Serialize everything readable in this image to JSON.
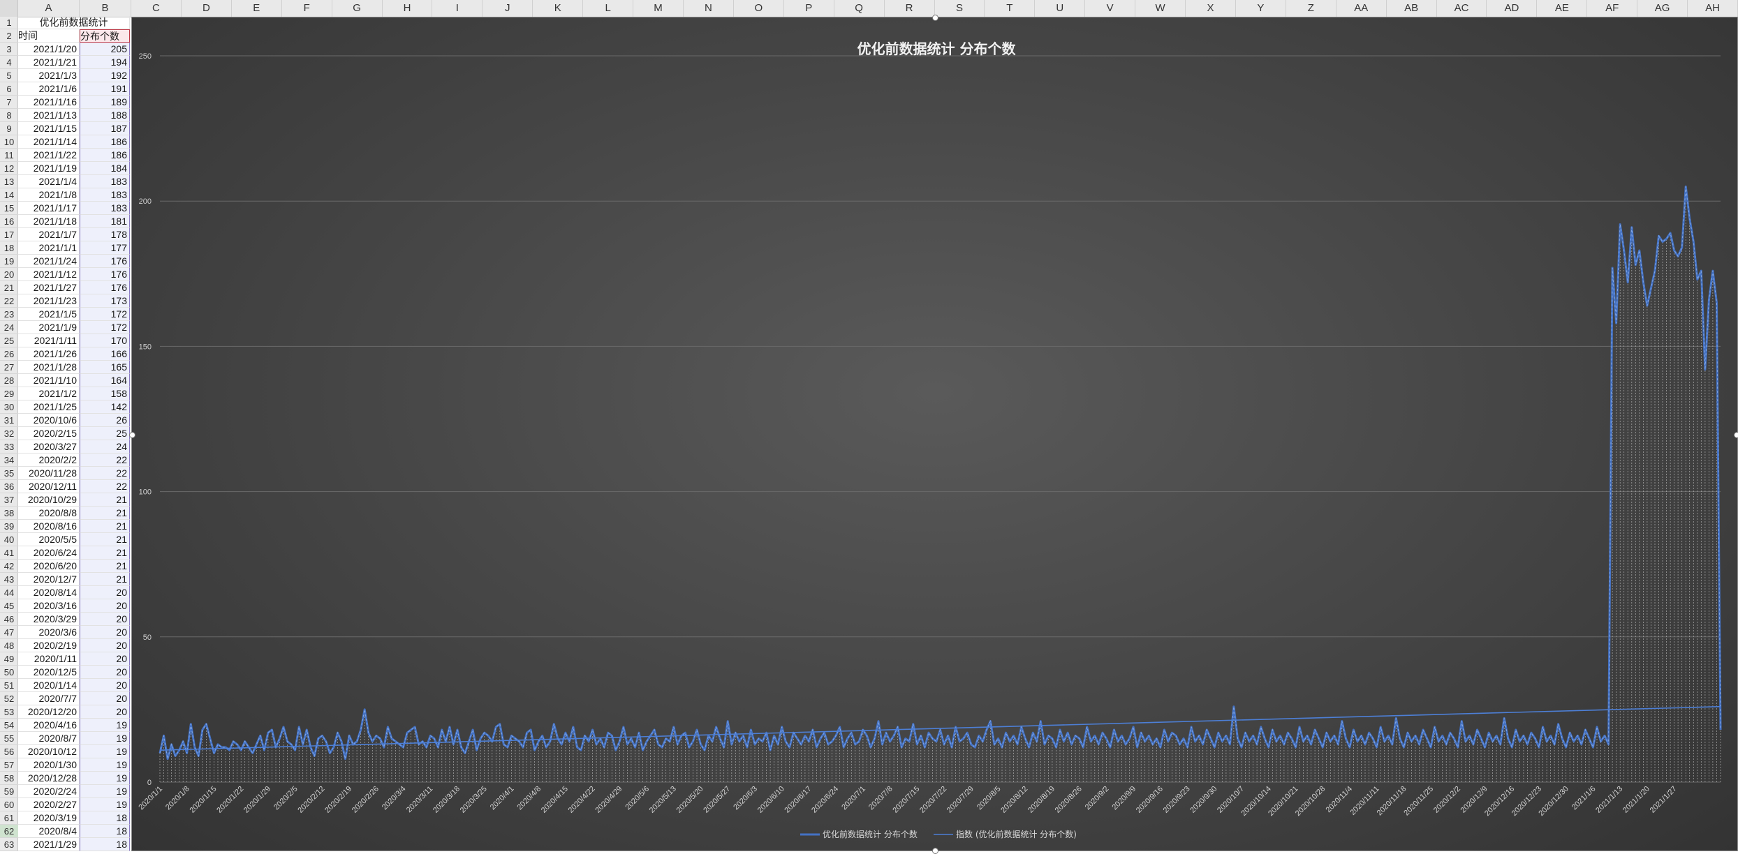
{
  "columns": [
    "A",
    "B",
    "C",
    "D",
    "E",
    "F",
    "G",
    "H",
    "I",
    "J",
    "K",
    "L",
    "M",
    "N",
    "O",
    "P",
    "Q",
    "R",
    "S",
    "T",
    "U",
    "V",
    "W",
    "X",
    "Y",
    "Z",
    "AA",
    "AB",
    "AC",
    "AD",
    "AE",
    "AF",
    "AG",
    "AH"
  ],
  "sheet": {
    "title_cell": "优化前数据统计",
    "header_a": "时间",
    "header_b": "分布个数",
    "rows": [
      {
        "n": "1",
        "a": "",
        "b": ""
      },
      {
        "n": "2",
        "a": "",
        "b": ""
      },
      {
        "n": "3",
        "a": "2021/1/20",
        "b": "205"
      },
      {
        "n": "4",
        "a": "2021/1/21",
        "b": "194"
      },
      {
        "n": "5",
        "a": "2021/1/3",
        "b": "192"
      },
      {
        "n": "6",
        "a": "2021/1/6",
        "b": "191"
      },
      {
        "n": "7",
        "a": "2021/1/16",
        "b": "189"
      },
      {
        "n": "8",
        "a": "2021/1/13",
        "b": "188"
      },
      {
        "n": "9",
        "a": "2021/1/15",
        "b": "187"
      },
      {
        "n": "10",
        "a": "2021/1/14",
        "b": "186"
      },
      {
        "n": "11",
        "a": "2021/1/22",
        "b": "186"
      },
      {
        "n": "12",
        "a": "2021/1/19",
        "b": "184"
      },
      {
        "n": "13",
        "a": "2021/1/4",
        "b": "183"
      },
      {
        "n": "14",
        "a": "2021/1/8",
        "b": "183"
      },
      {
        "n": "15",
        "a": "2021/1/17",
        "b": "183"
      },
      {
        "n": "16",
        "a": "2021/1/18",
        "b": "181"
      },
      {
        "n": "17",
        "a": "2021/1/7",
        "b": "178"
      },
      {
        "n": "18",
        "a": "2021/1/1",
        "b": "177"
      },
      {
        "n": "19",
        "a": "2021/1/24",
        "b": "176"
      },
      {
        "n": "20",
        "a": "2021/1/12",
        "b": "176"
      },
      {
        "n": "21",
        "a": "2021/1/27",
        "b": "176"
      },
      {
        "n": "22",
        "a": "2021/1/23",
        "b": "173"
      },
      {
        "n": "23",
        "a": "2021/1/5",
        "b": "172"
      },
      {
        "n": "24",
        "a": "2021/1/9",
        "b": "172"
      },
      {
        "n": "25",
        "a": "2021/1/11",
        "b": "170"
      },
      {
        "n": "26",
        "a": "2021/1/26",
        "b": "166"
      },
      {
        "n": "27",
        "a": "2021/1/28",
        "b": "165"
      },
      {
        "n": "28",
        "a": "2021/1/10",
        "b": "164"
      },
      {
        "n": "29",
        "a": "2021/1/2",
        "b": "158"
      },
      {
        "n": "30",
        "a": "2021/1/25",
        "b": "142"
      },
      {
        "n": "31",
        "a": "2020/10/6",
        "b": "26"
      },
      {
        "n": "32",
        "a": "2020/2/15",
        "b": "25"
      },
      {
        "n": "33",
        "a": "2020/3/27",
        "b": "24"
      },
      {
        "n": "34",
        "a": "2020/2/2",
        "b": "22"
      },
      {
        "n": "35",
        "a": "2020/11/28",
        "b": "22"
      },
      {
        "n": "36",
        "a": "2020/12/11",
        "b": "22"
      },
      {
        "n": "37",
        "a": "2020/10/29",
        "b": "21"
      },
      {
        "n": "38",
        "a": "2020/8/8",
        "b": "21"
      },
      {
        "n": "39",
        "a": "2020/8/16",
        "b": "21"
      },
      {
        "n": "40",
        "a": "2020/5/5",
        "b": "21"
      },
      {
        "n": "41",
        "a": "2020/6/24",
        "b": "21"
      },
      {
        "n": "42",
        "a": "2020/6/20",
        "b": "21"
      },
      {
        "n": "43",
        "a": "2020/12/7",
        "b": "21"
      },
      {
        "n": "44",
        "a": "2020/8/14",
        "b": "20"
      },
      {
        "n": "45",
        "a": "2020/3/16",
        "b": "20"
      },
      {
        "n": "46",
        "a": "2020/3/29",
        "b": "20"
      },
      {
        "n": "47",
        "a": "2020/3/6",
        "b": "20"
      },
      {
        "n": "48",
        "a": "2020/2/19",
        "b": "20"
      },
      {
        "n": "49",
        "a": "2020/1/11",
        "b": "20"
      },
      {
        "n": "50",
        "a": "2020/12/5",
        "b": "20"
      },
      {
        "n": "51",
        "a": "2020/1/14",
        "b": "20"
      },
      {
        "n": "52",
        "a": "2020/7/7",
        "b": "20"
      },
      {
        "n": "53",
        "a": "2020/12/20",
        "b": "20"
      },
      {
        "n": "54",
        "a": "2020/4/16",
        "b": "19"
      },
      {
        "n": "55",
        "a": "2020/8/7",
        "b": "19"
      },
      {
        "n": "56",
        "a": "2020/10/12",
        "b": "19"
      },
      {
        "n": "57",
        "a": "2020/1/30",
        "b": "19"
      },
      {
        "n": "58",
        "a": "2020/12/28",
        "b": "19"
      },
      {
        "n": "59",
        "a": "2020/2/24",
        "b": "19"
      },
      {
        "n": "60",
        "a": "2020/2/27",
        "b": "19"
      },
      {
        "n": "61",
        "a": "2020/3/19",
        "b": "18"
      },
      {
        "n": "62",
        "a": "2020/8/4",
        "b": "18"
      },
      {
        "n": "63",
        "a": "2021/1/29",
        "b": "18"
      }
    ]
  },
  "colors": {
    "series": "#4472c4",
    "trend": "#4d7fd6",
    "gridline": "#6a6a6a"
  },
  "chart_data": {
    "type": "line",
    "title": "优化前数据统计 分布个数",
    "ylim": [
      0,
      250
    ],
    "yticks": [
      "0",
      "50",
      "100",
      "150",
      "200",
      "250"
    ],
    "xtick_labels": [
      "2020/1/1",
      "2020/1/8",
      "2020/1/15",
      "2020/1/22",
      "2020/1/29",
      "2020/2/5",
      "2020/2/12",
      "2020/2/19",
      "2020/2/26",
      "2020/3/4",
      "2020/3/11",
      "2020/3/18",
      "2020/3/25",
      "2020/4/1",
      "2020/4/8",
      "2020/4/15",
      "2020/4/22",
      "2020/4/29",
      "2020/5/6",
      "2020/5/13",
      "2020/5/20",
      "2020/5/27",
      "2020/6/3",
      "2020/6/10",
      "2020/6/17",
      "2020/6/24",
      "2020/7/1",
      "2020/7/8",
      "2020/7/15",
      "2020/7/22",
      "2020/7/29",
      "2020/8/5",
      "2020/8/12",
      "2020/8/19",
      "2020/8/26",
      "2020/9/2",
      "2020/9/9",
      "2020/9/16",
      "2020/9/23",
      "2020/9/30",
      "2020/10/7",
      "2020/10/14",
      "2020/10/21",
      "2020/10/28",
      "2020/11/4",
      "2020/11/11",
      "2020/11/18",
      "2020/11/25",
      "2020/12/2",
      "2020/12/9",
      "2020/12/16",
      "2020/12/23",
      "2020/12/30",
      "2021/1/6",
      "2021/1/13",
      "2021/1/20",
      "2021/1/27"
    ],
    "grid": true,
    "legend_position": "bottom",
    "series": [
      {
        "name": "优化前数据统计 分布个数",
        "x_start": "2020/1/1",
        "x_end": "2021/1/29",
        "values": [
          10,
          16,
          8,
          13,
          9,
          11,
          14,
          10,
          20,
          12,
          9,
          18,
          20,
          15,
          10,
          13,
          12,
          12,
          11,
          14,
          13,
          11,
          14,
          12,
          10,
          13,
          16,
          11,
          17,
          18,
          12,
          15,
          19,
          14,
          13,
          11,
          19,
          13,
          18,
          12,
          9,
          15,
          16,
          14,
          10,
          12,
          17,
          14,
          8,
          16,
          13,
          14,
          18,
          25,
          17,
          14,
          16,
          15,
          12,
          19,
          15,
          14,
          13,
          12,
          17,
          18,
          19,
          13,
          14,
          12,
          16,
          15,
          12,
          18,
          14,
          19,
          13,
          18,
          12,
          10,
          14,
          18,
          11,
          15,
          17,
          16,
          14,
          19,
          20,
          13,
          12,
          16,
          15,
          14,
          12,
          17,
          18,
          11,
          14,
          16,
          12,
          14,
          20,
          15,
          13,
          17,
          14,
          19,
          12,
          11,
          16,
          14,
          18,
          13,
          15,
          12,
          17,
          16,
          11,
          14,
          19,
          13,
          15,
          12,
          17,
          11,
          14,
          16,
          18,
          13,
          12,
          15,
          14,
          19,
          13,
          16,
          17,
          12,
          14,
          18,
          13,
          11,
          16,
          14,
          19,
          15,
          12,
          21,
          13,
          17,
          14,
          16,
          12,
          18,
          13,
          15,
          14,
          17,
          11,
          16,
          13,
          19,
          14,
          12,
          17,
          15,
          13,
          16,
          14,
          18,
          12,
          15,
          17,
          13,
          14,
          16,
          19,
          12,
          15,
          17,
          13,
          14,
          18,
          16,
          12,
          15,
          21,
          13,
          17,
          14,
          16,
          19,
          12,
          15,
          14,
          20,
          13,
          16,
          12,
          17,
          15,
          14,
          18,
          13,
          16,
          12,
          19,
          14,
          15,
          17,
          13,
          12,
          16,
          14,
          18,
          21,
          13,
          15,
          12,
          17,
          14,
          16,
          13,
          19,
          15,
          12,
          17,
          14,
          21,
          13,
          16,
          15,
          12,
          18,
          14,
          17,
          13,
          16,
          15,
          12,
          19,
          14,
          16,
          13,
          17,
          15,
          12,
          18,
          14,
          16,
          13,
          15,
          19,
          12,
          17,
          14,
          16,
          13,
          15,
          12,
          18,
          14,
          17,
          16,
          13,
          15,
          12,
          19,
          14,
          16,
          13,
          18,
          15,
          12,
          17,
          14,
          16,
          13,
          26,
          15,
          12,
          17,
          14,
          16,
          13,
          19,
          15,
          12,
          18,
          14,
          16,
          13,
          17,
          15,
          12,
          19,
          14,
          16,
          13,
          18,
          15,
          12,
          17,
          14,
          16,
          13,
          21,
          15,
          12,
          18,
          14,
          16,
          13,
          17,
          15,
          12,
          19,
          14,
          16,
          13,
          22,
          15,
          12,
          17,
          14,
          16,
          13,
          18,
          15,
          12,
          19,
          14,
          16,
          13,
          17,
          15,
          12,
          21,
          14,
          16,
          13,
          18,
          15,
          12,
          17,
          14,
          16,
          13,
          22,
          15,
          12,
          18,
          14,
          16,
          13,
          17,
          15,
          12,
          19,
          14,
          16,
          13,
          20,
          15,
          12,
          17,
          14,
          16,
          13,
          18,
          15,
          12,
          19,
          14,
          16,
          13,
          177,
          158,
          192,
          183,
          172,
          191,
          178,
          183,
          172,
          164,
          170,
          176,
          188,
          186,
          187,
          189,
          183,
          181,
          184,
          205,
          194,
          186,
          173,
          176,
          142,
          166,
          176,
          165,
          18
        ]
      },
      {
        "name": "指数 (优化前数据统计 分布个数)",
        "values": [
          11,
          26
        ]
      }
    ]
  }
}
